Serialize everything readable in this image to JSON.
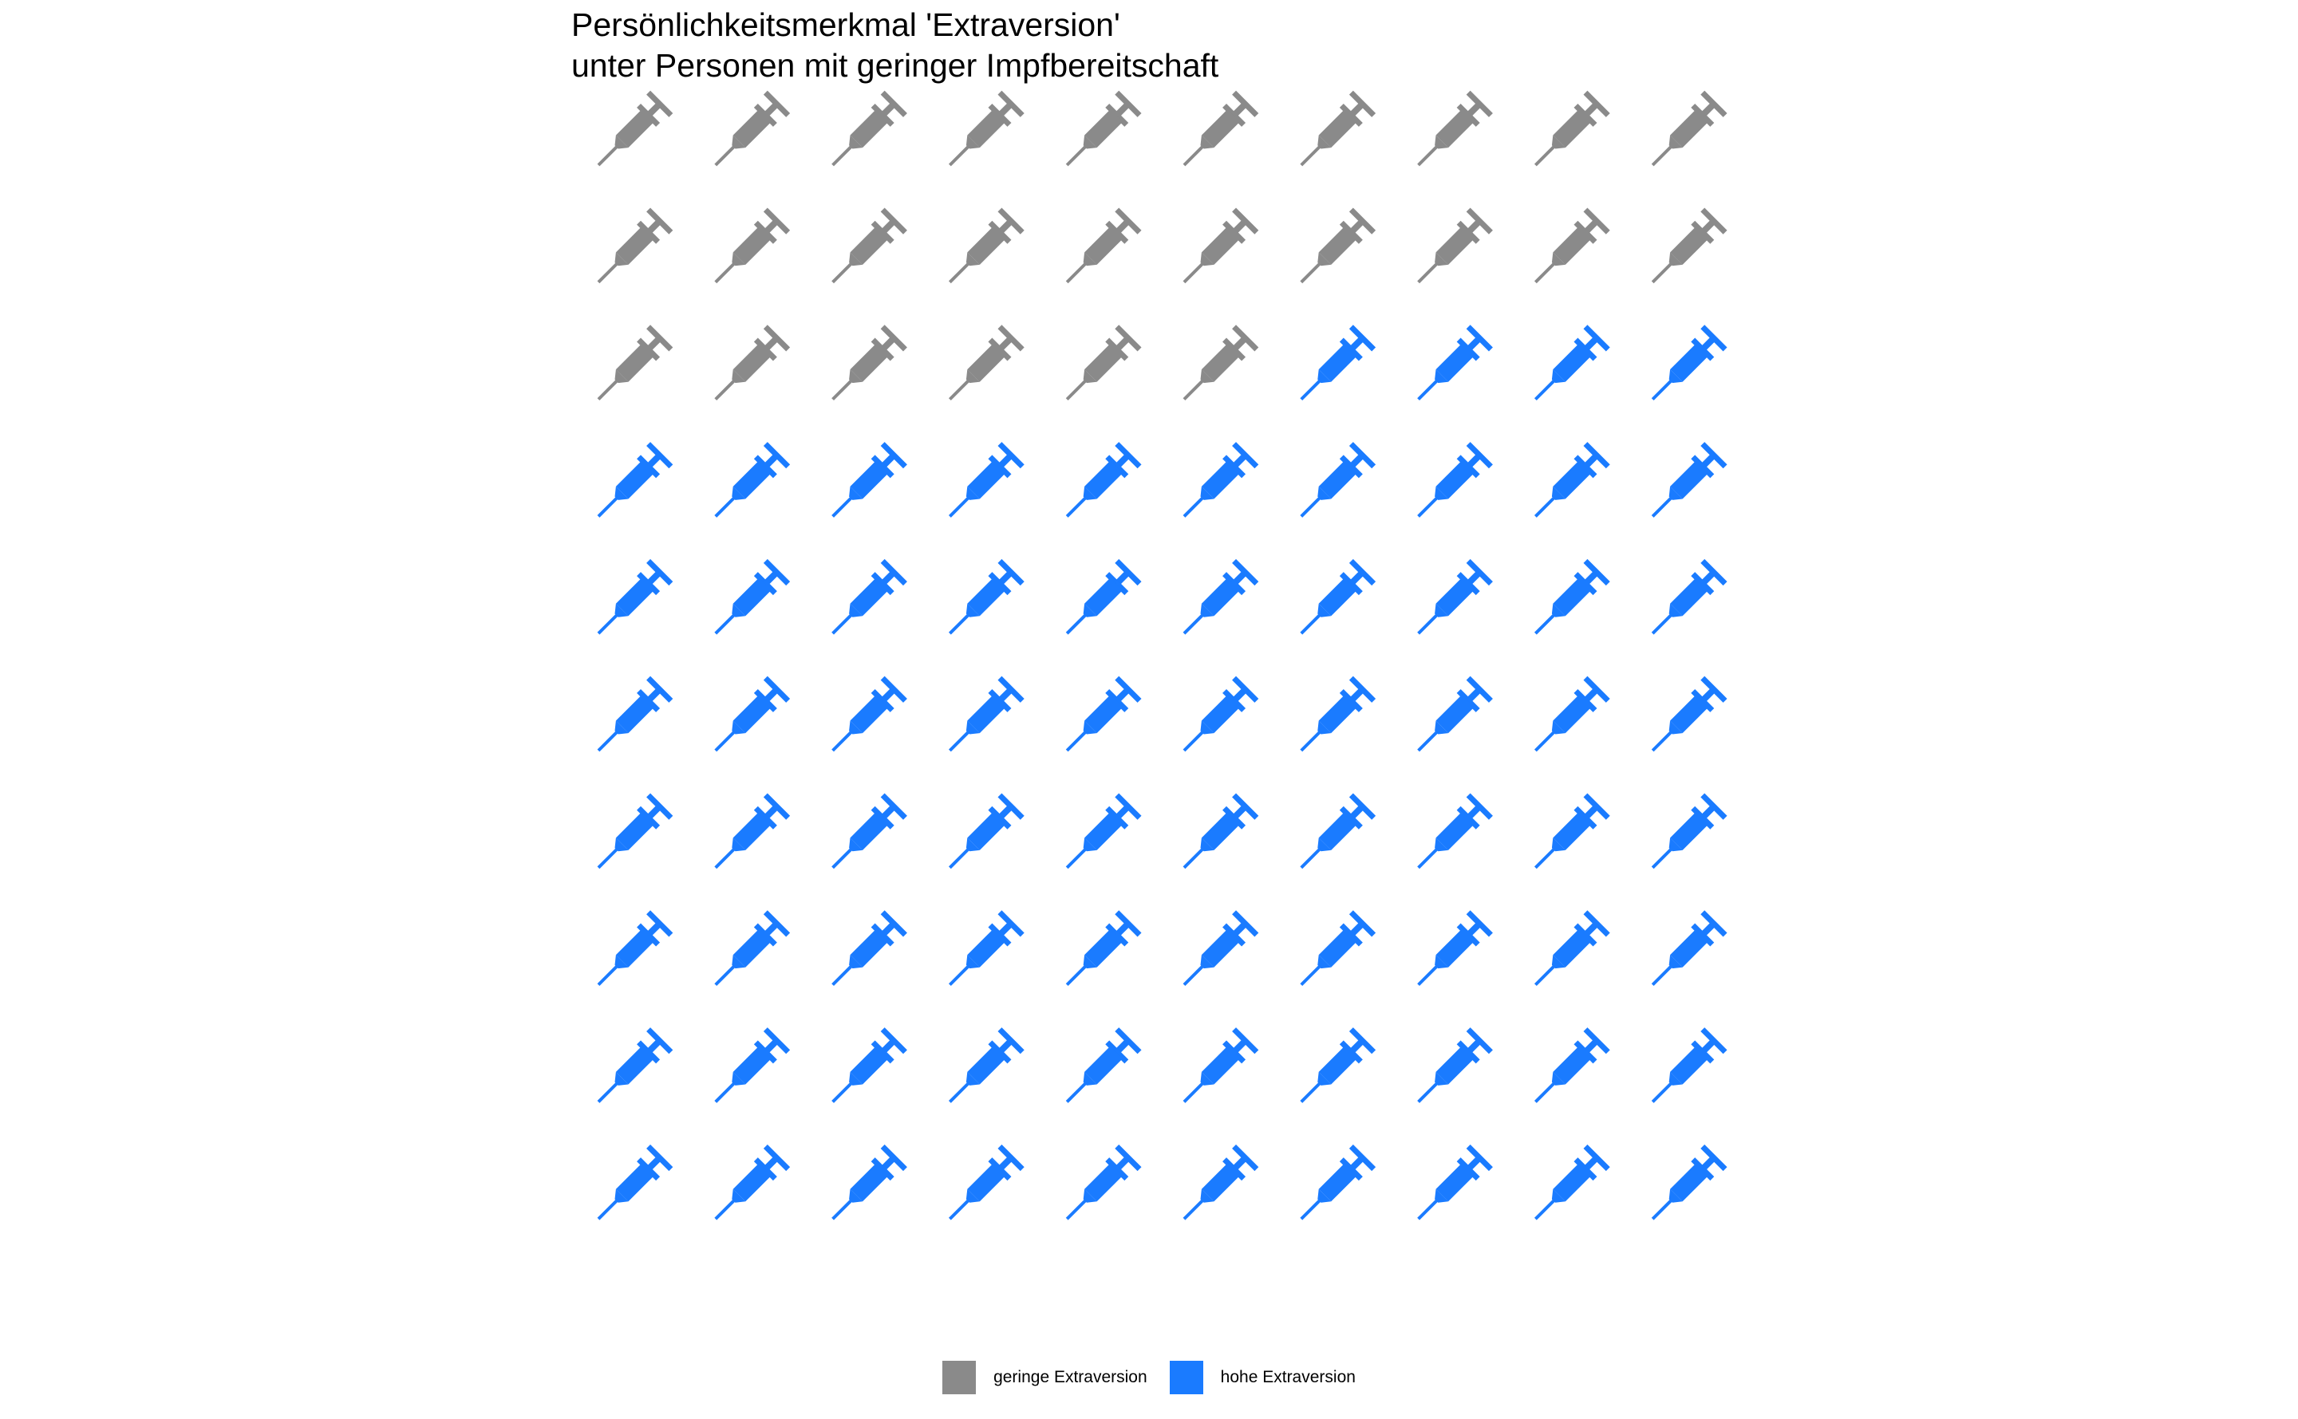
{
  "chart_data": {
    "type": "waffle",
    "title_lines": [
      "Persönlichkeitsmerkmal 'Extraversion'",
      "unter Personen mit geringer Impfbereitschaft"
    ],
    "icon": "syringe-icon",
    "grid": {
      "rows": 10,
      "cols": 10
    },
    "categories": [
      "geringe Extraversion",
      "hohe Extraversion"
    ],
    "values": [
      26,
      74
    ],
    "colors": [
      "#8a8a8a",
      "#1a7bff"
    ],
    "legend_position": "bottom"
  }
}
